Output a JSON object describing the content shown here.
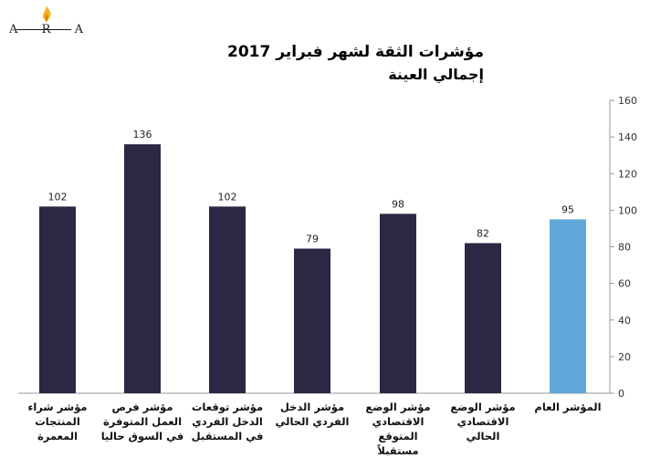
{
  "logo": {
    "text": "ARA"
  },
  "chart_data": {
    "type": "bar",
    "title": "مؤشرات الثقة لشهر فبراير   2017",
    "subtitle": "إجمالي العينة",
    "categories": [
      "مؤشر شراء المنتجات المعمرة",
      "مؤشر فرص العمل المتوفرة في السوق حاليا",
      "مؤشر توقعات الدخل الفردي في المستقبل",
      "مؤشر الدخل الفردي الحالي",
      "مؤشر الوضع الاقتصادي المتوقع مستقبلاً",
      "مؤشر الوضع الاقتصادي الحالي",
      "المؤشر العام"
    ],
    "values": [
      102,
      136,
      102,
      79,
      98,
      82,
      95
    ],
    "value_labels": [
      "102",
      "136",
      "102",
      "79",
      "98",
      "82",
      "95"
    ],
    "bar_colors": [
      "#2d2744",
      "#2d2744",
      "#2d2744",
      "#2d2744",
      "#2d2744",
      "#2d2744",
      "#5fa8d9"
    ],
    "ylim": [
      0,
      160
    ],
    "yticks": [
      0,
      20,
      40,
      60,
      80,
      100,
      120,
      140,
      160
    ],
    "ytick_labels": [
      "0",
      "20",
      "40",
      "60",
      "80",
      "100",
      "120",
      "140",
      "160"
    ],
    "y_axis_side": "right",
    "grid": false,
    "xlabel": "",
    "ylabel": ""
  }
}
